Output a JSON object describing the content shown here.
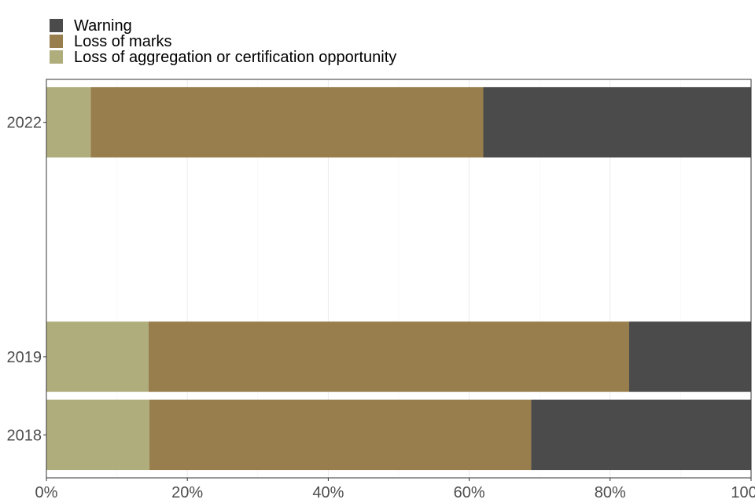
{
  "chart_data": {
    "type": "bar",
    "orientation": "horizontal",
    "stacked": true,
    "title": "",
    "xlabel": "",
    "ylabel": "",
    "xlim": [
      0,
      100
    ],
    "x_ticks": [
      "0%",
      "20%",
      "40%",
      "60%",
      "80%",
      "100%"
    ],
    "x_tick_values": [
      0,
      20,
      40,
      60,
      80,
      100
    ],
    "categories": [
      "2018",
      "2019",
      "2022"
    ],
    "category_positions": [
      2018,
      2019,
      2022
    ],
    "grid": true,
    "legend_position": "top-left",
    "series": [
      {
        "name": "Loss of aggregation or certification opportunity",
        "color": "#b0ad7d",
        "values": [
          14.6,
          14.5,
          6.3
        ]
      },
      {
        "name": "Loss of marks",
        "color": "#977e4c",
        "values": [
          54.2,
          68.2,
          55.7
        ]
      },
      {
        "name": "Warning",
        "color": "#4b4b4b",
        "values": [
          31.2,
          17.3,
          38.0
        ]
      }
    ],
    "legend_order": [
      "Warning",
      "Loss of marks",
      "Loss of aggregation or certification opportunity"
    ]
  }
}
